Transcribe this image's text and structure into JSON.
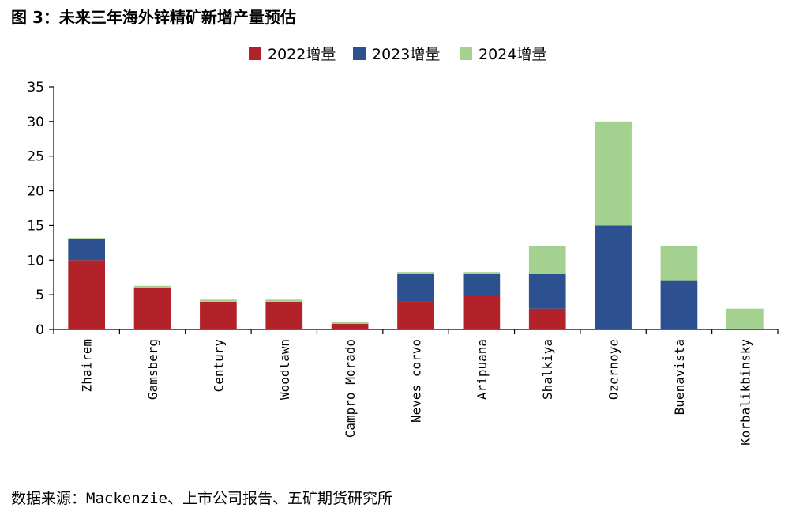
{
  "figure": {
    "title": "图 3：未来三年海外锌精矿新增产量预估",
    "source": "数据来源：Mackenzie、上市公司报告、五矿期货研究所"
  },
  "chart_data": {
    "type": "bar",
    "stacked": true,
    "categories": [
      "Zhairem",
      "Gamsberg",
      "Century",
      "Woodlawn",
      "Campro Morado",
      "Neves corvo",
      "Aripuana",
      "Shalkiya",
      "Ozernoye",
      "Buenavista",
      "Korbalikbinsky"
    ],
    "series": [
      {
        "name": "2022增量",
        "color": "#B22228",
        "values": [
          10,
          6,
          4,
          4,
          0.8,
          4,
          5,
          3,
          0,
          0,
          0
        ]
      },
      {
        "name": "2023增量",
        "color": "#2C5090",
        "values": [
          3,
          0,
          0,
          0,
          0,
          4,
          3,
          5,
          15,
          7,
          0
        ]
      },
      {
        "name": "2024增量",
        "color": "#A4D18F",
        "values": [
          0.2,
          0.3,
          0.3,
          0.3,
          0.3,
          0.3,
          0.3,
          4,
          15,
          5,
          3
        ]
      }
    ],
    "ylim": [
      0,
      35
    ],
    "yticks": [
      0,
      5,
      10,
      15,
      20,
      25,
      30,
      35
    ],
    "grid": false,
    "legend_position": "top-center",
    "xlabel": "",
    "ylabel": ""
  }
}
